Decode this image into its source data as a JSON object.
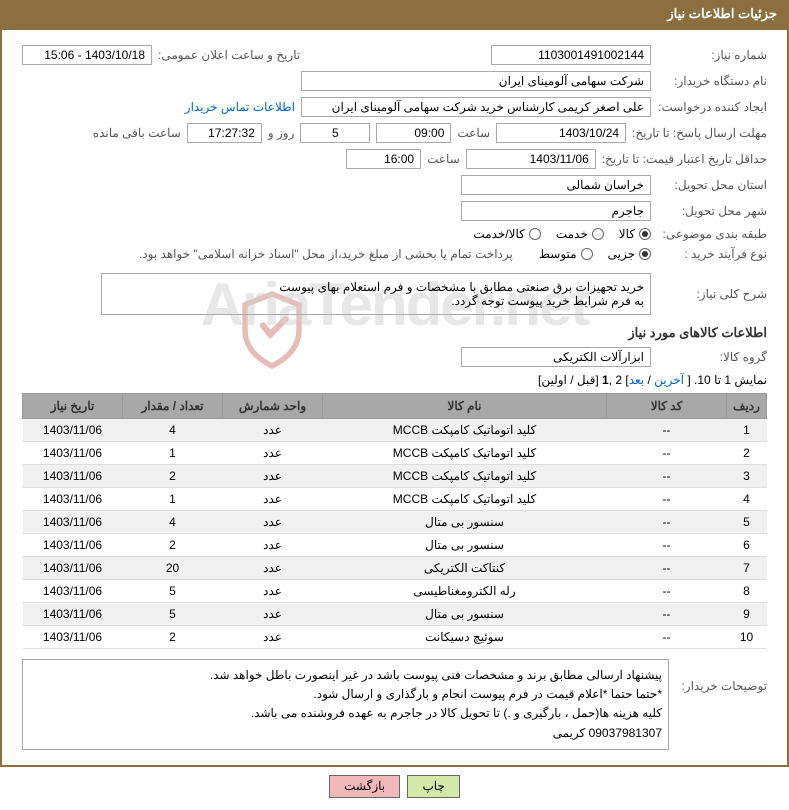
{
  "header": {
    "title": "جزئیات اطلاعات نیاز"
  },
  "fields": {
    "need_number_label": "شماره نیاز:",
    "need_number": "1103001491002144",
    "announce_label": "تاریخ و ساعت اعلان عمومی:",
    "announce_value": "1403/10/18 - 15:06",
    "buyer_org_label": "نام دستگاه خریدار:",
    "buyer_org": "شرکت سهامی آلومینای ایران",
    "requester_label": "ایجاد کننده درخواست:",
    "requester": "علی اصغر کریمی کارشناس خرید شرکت سهامی آلومینای ایران",
    "contact_link": "اطلاعات تماس خریدار",
    "deadline_label": "مهلت ارسال پاسخ: تا تاریخ:",
    "deadline_date": "1403/10/24",
    "time_label": "ساعت",
    "deadline_time": "09:00",
    "days_count": "5",
    "days_and": "روز و",
    "countdown": "17:27:32",
    "remaining": "ساعت باقی مانده",
    "validity_label": "حداقل تاریخ اعتبار قیمت: تا تاریخ:",
    "validity_date": "1403/11/06",
    "validity_time": "16:00",
    "province_label": "استان محل تحویل:",
    "province": "خراسان شمالی",
    "city_label": "شهر محل تحویل:",
    "city": "جاجرم",
    "category_label": "طبقه بندی موضوعی:",
    "cat_goods": "کالا",
    "cat_service": "خدمت",
    "cat_both": "کالا/خدمت",
    "process_label": "نوع فرآیند خرید :",
    "proc_partial": "جزیی",
    "proc_medium": "متوسط",
    "process_note": "پرداخت تمام یا بخشی از مبلغ خرید،از محل \"اسناد خزانه اسلامی\" خواهد بود.",
    "summary_label": "شرح کلی نیاز:",
    "summary_line1": "خرید تجهیزات برق صنعتی مطابق با مشخصات و فرم استعلام بهای پیوست",
    "summary_line2": "به فرم شرایط خرید پیوست توجه گردد.",
    "goods_info_title": "اطلاعات کالاهای مورد نیاز",
    "group_label": "گروه کالا:",
    "group_value": "ابزارآلات الکتریکی",
    "pagination_text": "نمایش 1 تا 10. [ ",
    "pag_last": "آخرین",
    "pag_sep1": " / ",
    "pag_next": "بعد",
    "pag_sep2": "] 2 ,",
    "pag_1": "1",
    "pag_sep3": " [قبل / اولین]",
    "buyer_notes_label": "توضیحات خریدار:",
    "buyer_notes_l1": "پیشنهاد ارسالی مطابق برند و مشخصات فنی پیوست باشد در غیر اینصورت باطل خواهد شد.",
    "buyer_notes_l2": "*حتما حتما *اعلام قیمت در فرم پیوست انجام و بارگذاری و ارسال شود.",
    "buyer_notes_l3": "کلیه هزینه ها(حمل ، بارگیری و .) تا تحویل کالا در جاجرم به عهده فروشنده می باشد.",
    "buyer_notes_l4": "09037981307 کریمی"
  },
  "table": {
    "headers": {
      "row": "ردیف",
      "code": "کد کالا",
      "name": "نام کالا",
      "unit": "واحد شمارش",
      "qty": "تعداد / مقدار",
      "date": "تاریخ نیاز"
    },
    "rows": [
      {
        "n": "1",
        "code": "--",
        "name": "کلید اتوماتیک کامپکت MCCB",
        "unit": "عدد",
        "qty": "4",
        "date": "1403/11/06"
      },
      {
        "n": "2",
        "code": "--",
        "name": "کلید اتوماتیک کامپکت MCCB",
        "unit": "عدد",
        "qty": "1",
        "date": "1403/11/06"
      },
      {
        "n": "3",
        "code": "--",
        "name": "کلید اتوماتیک کامپکت MCCB",
        "unit": "عدد",
        "qty": "2",
        "date": "1403/11/06"
      },
      {
        "n": "4",
        "code": "--",
        "name": "کلید اتوماتیک کامپکت MCCB",
        "unit": "عدد",
        "qty": "1",
        "date": "1403/11/06"
      },
      {
        "n": "5",
        "code": "--",
        "name": "سنسور بی متال",
        "unit": "عدد",
        "qty": "4",
        "date": "1403/11/06"
      },
      {
        "n": "6",
        "code": "--",
        "name": "سنسور بی متال",
        "unit": "عدد",
        "qty": "2",
        "date": "1403/11/06"
      },
      {
        "n": "7",
        "code": "--",
        "name": "کنتاکت الکتریکی",
        "unit": "عدد",
        "qty": "20",
        "date": "1403/11/06"
      },
      {
        "n": "8",
        "code": "--",
        "name": "رله الکترومغناطیسی",
        "unit": "عدد",
        "qty": "5",
        "date": "1403/11/06"
      },
      {
        "n": "9",
        "code": "--",
        "name": "سنسور بی متال",
        "unit": "عدد",
        "qty": "5",
        "date": "1403/11/06"
      },
      {
        "n": "10",
        "code": "--",
        "name": "سوئیچ دسیکانت",
        "unit": "عدد",
        "qty": "2",
        "date": "1403/11/06"
      }
    ]
  },
  "buttons": {
    "print": "چاپ",
    "back": "بازگشت"
  },
  "watermark": "AriaTender.net"
}
